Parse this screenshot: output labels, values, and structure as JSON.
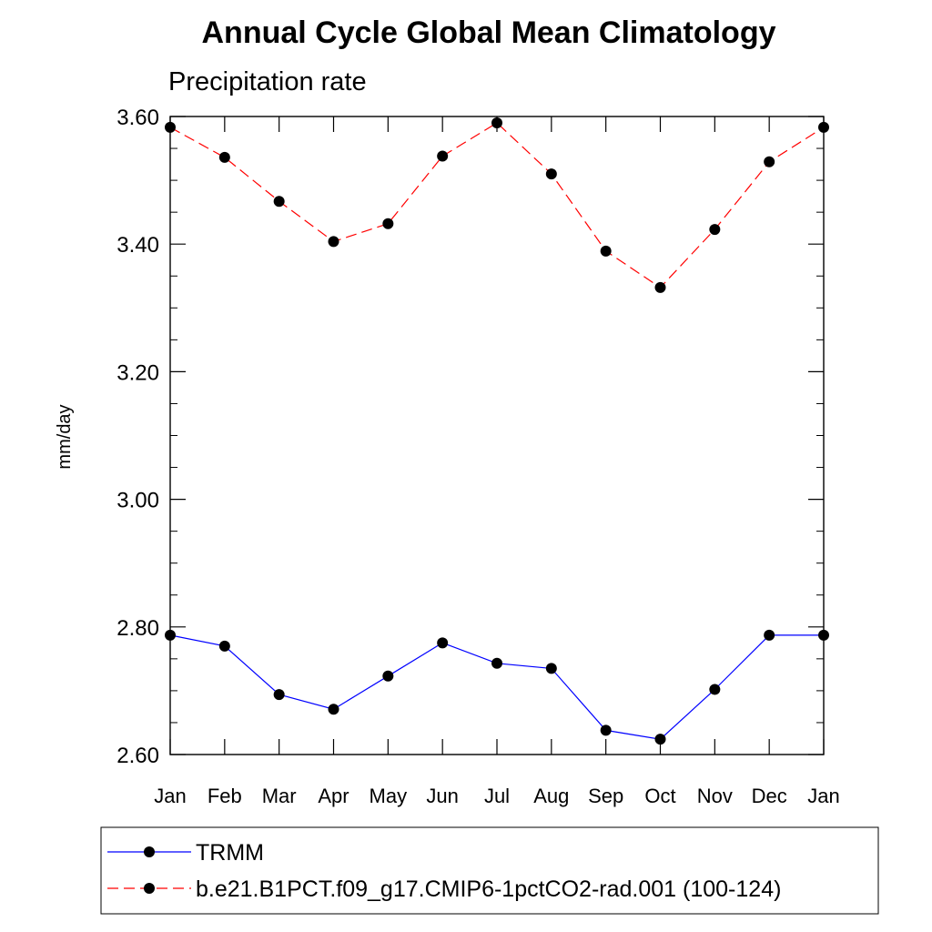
{
  "chart_data": {
    "type": "line",
    "title": "Annual Cycle Global Mean Climatology",
    "subtitle": "Precipitation rate",
    "ylabel": "mm/day",
    "xlabel": "",
    "ylim": [
      2.6,
      3.6
    ],
    "yticks": [
      "3.60",
      "3.40",
      "3.20",
      "3.00",
      "2.80",
      "2.60"
    ],
    "ytick_values": [
      3.6,
      3.4,
      3.2,
      3.0,
      2.8,
      2.6
    ],
    "categories": [
      "Jan",
      "Feb",
      "Mar",
      "Apr",
      "May",
      "Jun",
      "Jul",
      "Aug",
      "Sep",
      "Oct",
      "Nov",
      "Dec",
      "Jan"
    ],
    "grid": false,
    "legend_position": "bottom",
    "series": [
      {
        "name": "TRMM",
        "color": "#0000ff",
        "style": "solid",
        "values": [
          2.787,
          2.77,
          2.694,
          2.671,
          2.723,
          2.775,
          2.743,
          2.735,
          2.638,
          2.624,
          2.702,
          2.787,
          2.787
        ]
      },
      {
        "name": "b.e21.B1PCT.f09_g17.CMIP6-1pctCO2-rad.001 (100-124)",
        "color": "#ff0000",
        "style": "dashed",
        "values": [
          3.583,
          3.536,
          3.467,
          3.404,
          3.432,
          3.538,
          3.59,
          3.51,
          3.389,
          3.332,
          3.423,
          3.529,
          3.583
        ]
      }
    ]
  }
}
